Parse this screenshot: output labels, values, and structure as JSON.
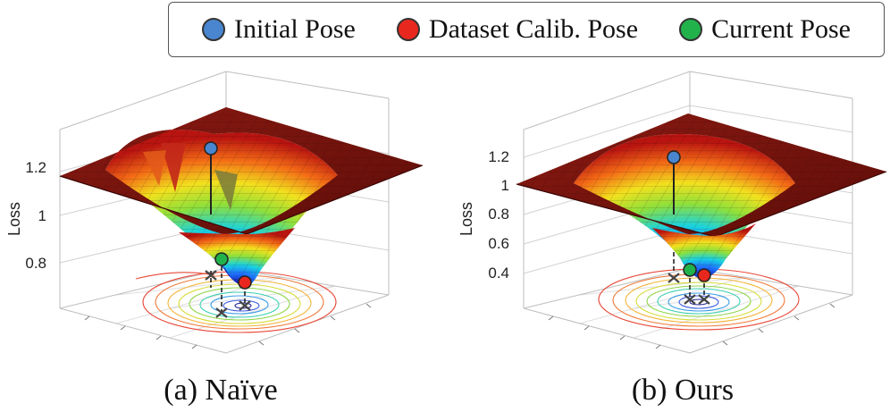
{
  "legend": [
    {
      "label": "Initial Pose",
      "color": "#4a86cf"
    },
    {
      "label": "Dataset Calib. Pose",
      "color": "#e8281e"
    },
    {
      "label": "Current Pose",
      "color": "#22b24c"
    }
  ],
  "chart_data": [
    {
      "type": "surface",
      "title": "(a) Naïve",
      "zlabel": "Loss",
      "z_ticks": [
        0.8,
        1,
        1.2
      ],
      "z_tick_labels": [
        "0.8",
        "1",
        "1.2"
      ],
      "points": {
        "initial_pose": {
          "loss": 1.28
        },
        "current_pose": {
          "loss": 0.82
        },
        "dataset_calib_pose": {
          "loss": 0.73
        }
      }
    },
    {
      "type": "surface",
      "title": "(b) Ours",
      "zlabel": "Loss",
      "z_ticks": [
        0.4,
        0.6,
        0.8,
        1,
        1.2
      ],
      "z_tick_labels": [
        "0.4",
        "0.6",
        "0.8",
        "1",
        "1.2"
      ],
      "points": {
        "initial_pose": {
          "loss": 1.17
        },
        "current_pose": {
          "loss": 0.41
        },
        "dataset_calib_pose": {
          "loss": 0.39
        }
      }
    }
  ]
}
